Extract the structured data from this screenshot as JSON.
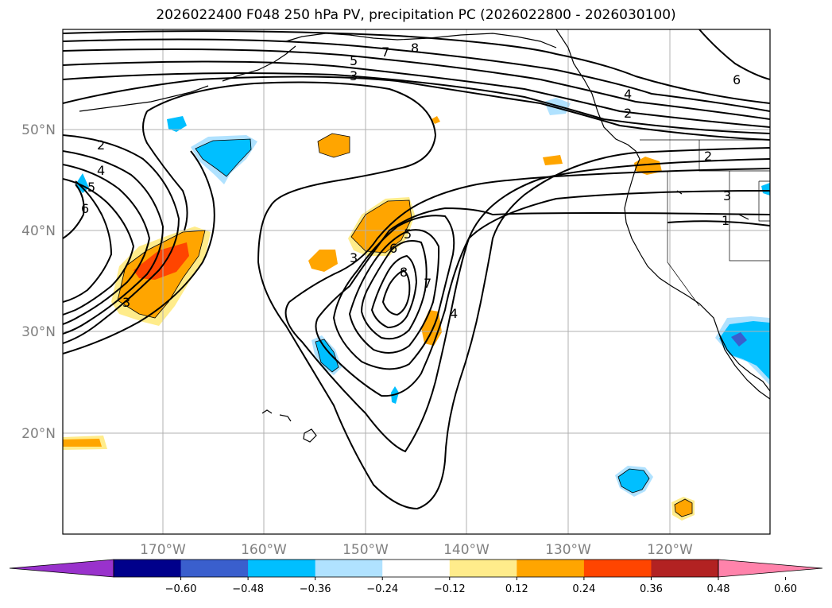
{
  "title": "2026022400 F048 250 hPa PV, precipitation PC (2026022800 - 2026030100)",
  "lat_labels": [
    "50°N",
    "40°N",
    "30°N",
    "20°N"
  ],
  "lon_labels": [
    "170°W",
    "160°W",
    "150°W",
    "140°W",
    "130°W",
    "120°W"
  ],
  "pv_contour_labels": [
    "8",
    "7",
    "5",
    "3",
    "4",
    "2",
    "6",
    "2",
    "4",
    "5",
    "6",
    "2",
    "3",
    "1",
    "3",
    "6",
    "5",
    "8",
    "7",
    "4",
    "3"
  ],
  "colorbar": {
    "ticks": [
      "−0.60",
      "−0.48",
      "−0.36",
      "−0.24",
      "−0.12",
      "0.12",
      "0.24",
      "0.36",
      "0.48",
      "0.60"
    ],
    "colors": [
      "#9932cc",
      "#00008b",
      "#3a5fcd",
      "#00bfff",
      "#b0e2ff",
      "#ffffff",
      "#ffec8b",
      "#ffa500",
      "#ff4500",
      "#b22222",
      "#ff83ab"
    ]
  }
}
